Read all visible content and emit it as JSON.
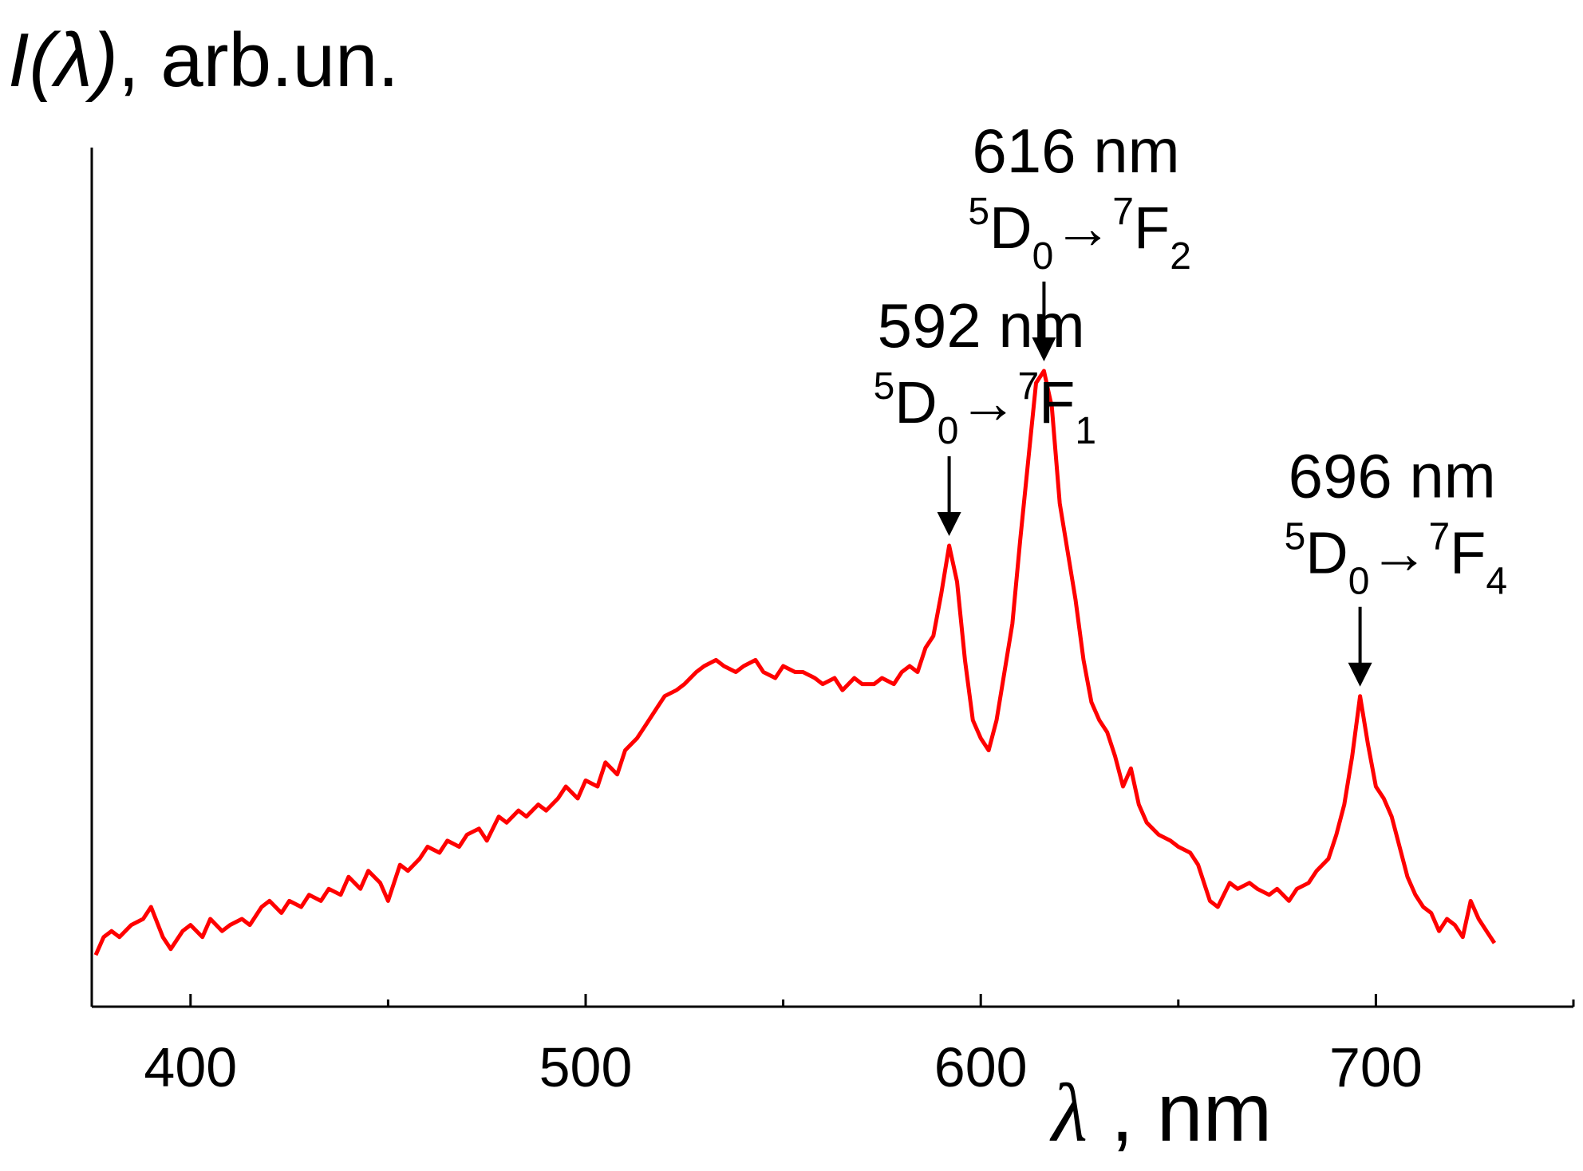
{
  "chart_data": {
    "type": "line",
    "title": "",
    "ylabel_italic": "I(λ)",
    "ylabel_rest": ", arb.un.",
    "xlabel_symbol": "λ",
    "xlabel_rest": " , nm",
    "xlim": [
      375,
      750
    ],
    "ylim": [
      0,
      1
    ],
    "x_ticks": [
      400,
      500,
      600,
      700
    ],
    "x_minor_ticks": [
      450,
      550,
      650,
      750
    ],
    "y_ticks_shown": false,
    "grid": false,
    "series_color": "#ff0000",
    "series": [
      {
        "x": [
          376,
          378,
          380,
          382,
          385,
          388,
          390,
          393,
          395,
          398,
          400,
          403,
          405,
          408,
          410,
          413,
          415,
          418,
          420,
          423,
          425,
          428,
          430,
          433,
          435,
          438,
          440,
          443,
          445,
          448,
          450,
          453,
          455,
          458,
          460,
          463,
          465,
          468,
          470,
          473,
          475,
          478,
          480,
          483,
          485,
          488,
          490,
          493,
          495,
          498,
          500,
          503,
          505,
          508,
          510,
          513,
          515,
          518,
          520,
          523,
          525,
          528,
          530,
          533,
          535,
          538,
          540,
          543,
          545,
          548,
          550,
          553,
          555,
          558,
          560,
          563,
          565,
          568,
          570,
          573,
          575,
          578,
          580,
          582,
          584,
          586,
          588,
          590,
          592,
          594,
          596,
          598,
          600,
          602,
          604,
          606,
          608,
          610,
          612,
          614,
          616,
          618,
          620,
          622,
          624,
          626,
          628,
          630,
          632,
          634,
          636,
          638,
          640,
          642,
          645,
          648,
          650,
          653,
          655,
          658,
          660,
          663,
          665,
          668,
          670,
          673,
          675,
          678,
          680,
          683,
          685,
          688,
          690,
          692,
          694,
          696,
          698,
          700,
          702,
          704,
          706,
          708,
          710,
          712,
          714,
          716,
          718,
          720,
          722,
          724,
          726,
          728,
          730
        ],
        "y": [
          0.03,
          0.06,
          0.07,
          0.06,
          0.08,
          0.09,
          0.11,
          0.06,
          0.04,
          0.07,
          0.08,
          0.06,
          0.09,
          0.07,
          0.08,
          0.09,
          0.08,
          0.11,
          0.12,
          0.1,
          0.12,
          0.11,
          0.13,
          0.12,
          0.14,
          0.13,
          0.16,
          0.14,
          0.17,
          0.15,
          0.12,
          0.18,
          0.17,
          0.19,
          0.21,
          0.2,
          0.22,
          0.21,
          0.23,
          0.24,
          0.22,
          0.26,
          0.25,
          0.27,
          0.26,
          0.28,
          0.27,
          0.29,
          0.31,
          0.29,
          0.32,
          0.31,
          0.35,
          0.33,
          0.37,
          0.39,
          0.41,
          0.44,
          0.46,
          0.47,
          0.48,
          0.5,
          0.51,
          0.52,
          0.51,
          0.5,
          0.51,
          0.52,
          0.5,
          0.49,
          0.51,
          0.5,
          0.5,
          0.49,
          0.48,
          0.49,
          0.47,
          0.49,
          0.48,
          0.48,
          0.49,
          0.48,
          0.5,
          0.51,
          0.5,
          0.54,
          0.56,
          0.63,
          0.71,
          0.65,
          0.52,
          0.42,
          0.39,
          0.37,
          0.42,
          0.5,
          0.58,
          0.72,
          0.85,
          0.98,
          1.0,
          0.94,
          0.78,
          0.7,
          0.62,
          0.52,
          0.45,
          0.42,
          0.4,
          0.36,
          0.31,
          0.34,
          0.28,
          0.25,
          0.23,
          0.22,
          0.21,
          0.2,
          0.18,
          0.12,
          0.11,
          0.15,
          0.14,
          0.15,
          0.14,
          0.13,
          0.14,
          0.12,
          0.14,
          0.15,
          0.17,
          0.19,
          0.23,
          0.28,
          0.36,
          0.46,
          0.38,
          0.31,
          0.29,
          0.26,
          0.21,
          0.16,
          0.13,
          0.11,
          0.1,
          0.07,
          0.09,
          0.08,
          0.06,
          0.12,
          0.09,
          0.07,
          0.05
        ]
      }
    ],
    "annotations": [
      {
        "wavelength_label": "592 nm",
        "t1": "5",
        "t2": "D",
        "t3": "0",
        "t4": "7",
        "t5": "F",
        "t6": "1",
        "x": 592,
        "y_tip": 0.71
      },
      {
        "wavelength_label": "616 nm",
        "t1": "5",
        "t2": "D",
        "t3": "0",
        "t4": "7",
        "t5": "F",
        "t6": "2",
        "x": 616,
        "y_tip": 1.0
      },
      {
        "wavelength_label": "696 nm",
        "t1": "5",
        "t2": "D",
        "t3": "0",
        "t4": "7",
        "t5": "F",
        "t6": "4",
        "x": 696,
        "y_tip": 0.46
      }
    ],
    "arrow_symbol": "→"
  }
}
